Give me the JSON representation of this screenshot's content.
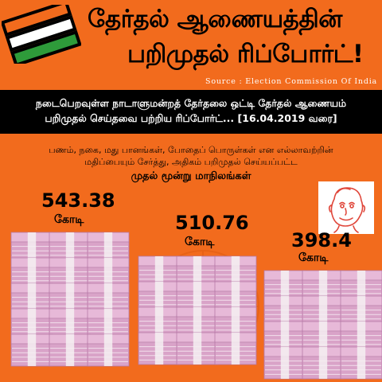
{
  "header": {
    "title_line1": "தேர்தல் ஆணையத்தின்",
    "title_line2": "பறிமுதல் ரிப்போர்ட்!",
    "source": "Source : Election Commission Of India",
    "logo_icon": "tricolor-ballot-logo-icon",
    "colors": {
      "background": "#f26b1d",
      "band": "#000000",
      "saffron": "#f26b1d",
      "green": "#2e9b3a"
    }
  },
  "banner": {
    "line1": "நடைபெறவுள்ள நாடாளுமன்றத் தேர்தலை ஒட்டி தேர்தல் ஆணையம்",
    "line2": "பறிமுதல்  செய்தவை பற்றிய ரிப்போர்ட்... [16.04.2019 வரை]"
  },
  "description": {
    "line1": "பணம், நகை, மது பானங்கள், போதைப் பொருள்கள் என எல்லாவற்றின்",
    "line2": "மதிப்பையும் சேர்த்து, அதிகம் பறிமுதல் செய்யப்பட்ட",
    "subheading": "முதல் மூன்று மாநிலங்கள்"
  },
  "mascot_icon": "cartoon-mascot-icon",
  "states": [
    {
      "amount": "543.38",
      "unit": "கோடி",
      "icon": "cash-stack-icon"
    },
    {
      "amount": "510.76",
      "unit": "கோடி",
      "icon": "cash-stack-icon"
    },
    {
      "amount": "398.4",
      "unit": "கோடி",
      "icon": "cash-stack-icon"
    }
  ]
}
